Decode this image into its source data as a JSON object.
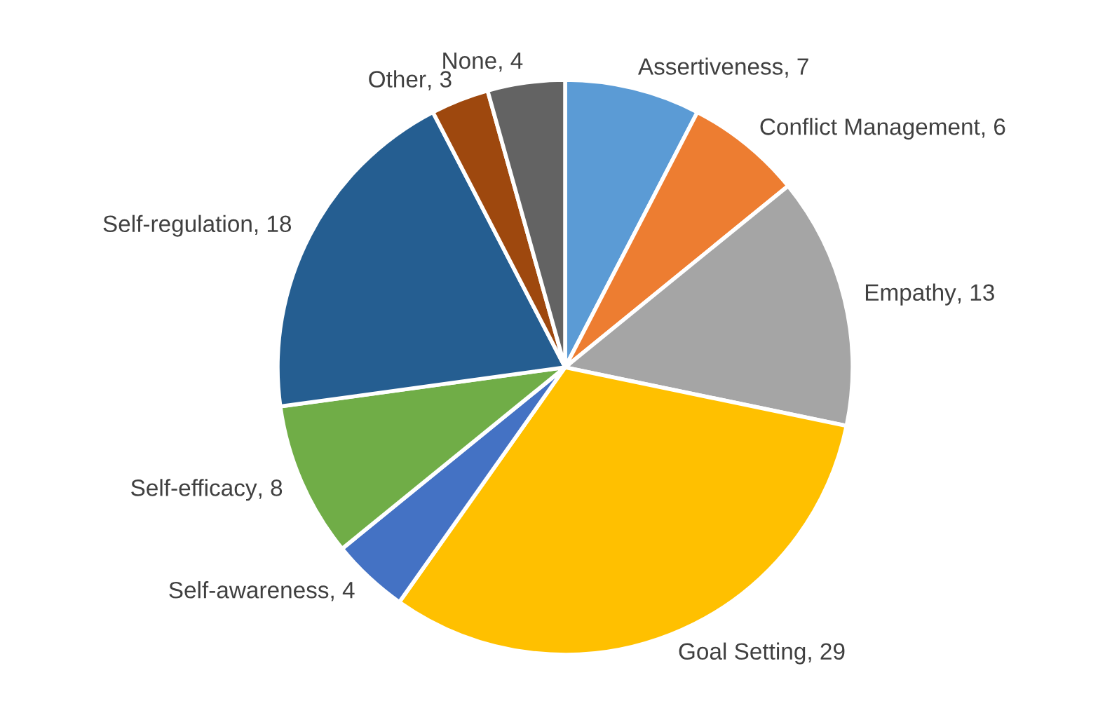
{
  "chart_data": {
    "type": "pie",
    "categories": [
      "Assertiveness",
      "Conflict Management",
      "Empathy",
      "Goal Setting",
      "Self-awareness",
      "Self-efficacy",
      "Self-regulation",
      "Other",
      "None"
    ],
    "values": [
      7,
      6,
      13,
      29,
      4,
      8,
      18,
      3,
      4
    ],
    "value_labels": [
      ", 7",
      ", 6",
      ", 13",
      ", 29",
      ", 4",
      ", 8",
      ", 18",
      ", 3",
      ", 4"
    ],
    "colors": [
      "#5b9bd5",
      "#ed7d31",
      "#a5a5a5",
      "#ffc000",
      "#4472c4",
      "#70ad47",
      "#255e91",
      "#9e480e",
      "#636363"
    ]
  }
}
